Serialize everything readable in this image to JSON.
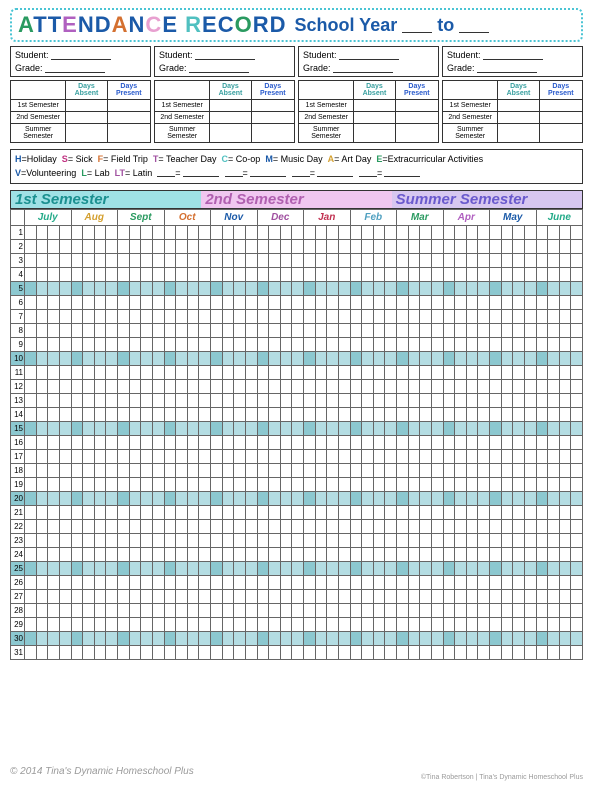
{
  "title": {
    "letters": [
      {
        "c": "A",
        "color": "#2a9a60"
      },
      {
        "c": "T",
        "color": "#1b5aa8"
      },
      {
        "c": "T",
        "color": "#1b5aa8"
      },
      {
        "c": "E",
        "color": "#b060c0"
      },
      {
        "c": "N",
        "color": "#1b5aa8"
      },
      {
        "c": "D",
        "color": "#1b5aa8"
      },
      {
        "c": "A",
        "color": "#d47030"
      },
      {
        "c": "N",
        "color": "#1b5aa8"
      },
      {
        "c": "C",
        "color": "#e8a0d0"
      },
      {
        "c": "E",
        "color": "#1b5aa8"
      },
      {
        "c": " ",
        "color": "#000"
      },
      {
        "c": "R",
        "color": "#50c0c0"
      },
      {
        "c": "E",
        "color": "#1b5aa8"
      },
      {
        "c": "C",
        "color": "#1b5aa8"
      },
      {
        "c": "O",
        "color": "#2a9a60"
      },
      {
        "c": "R",
        "color": "#1b5aa8"
      },
      {
        "c": "D",
        "color": "#1b5aa8"
      }
    ],
    "sub1": "School Year",
    "sub2": "to"
  },
  "student_labels": {
    "student": "Student:",
    "grade": "Grade:"
  },
  "summary": {
    "absent": "Days Absent",
    "present": "Days Present",
    "rows": [
      "1st Semester",
      "2nd Semester",
      "Summer Semester"
    ]
  },
  "legend": {
    "row1": [
      {
        "k": "H",
        "c": "#1b5aa8",
        "v": "=Holiday"
      },
      {
        "k": "S",
        "c": "#c03080",
        "v": "= Sick"
      },
      {
        "k": "F",
        "c": "#d47030",
        "v": "= Field Trip"
      },
      {
        "k": "T",
        "c": "#a050a0",
        "v": "= Teacher Day"
      },
      {
        "k": "C",
        "c": "#50c0c0",
        "v": "= Co-op"
      },
      {
        "k": "M",
        "c": "#1b5aa8",
        "v": "= Music Day"
      },
      {
        "k": "A",
        "c": "#d4a030",
        "v": "= Art Day"
      },
      {
        "k": "E",
        "c": "#2a9a60",
        "v": "=Extracurricular Activities"
      }
    ],
    "row2": [
      {
        "k": "V",
        "c": "#1b5aa8",
        "v": "=Volunteering"
      },
      {
        "k": "L",
        "c": "#2a9a60",
        "v": "= Lab"
      },
      {
        "k": "LT",
        "c": "#a050a0",
        "v": "= Latin"
      }
    ]
  },
  "semesters": {
    "s1": "1st Semester",
    "s2": "2nd Semester",
    "s3": "Summer Semester"
  },
  "months": [
    {
      "n": "July",
      "cls": "july"
    },
    {
      "n": "Aug",
      "cls": "aug"
    },
    {
      "n": "Sept",
      "cls": "sept"
    },
    {
      "n": "Oct",
      "cls": "oct"
    },
    {
      "n": "Nov",
      "cls": "nov"
    },
    {
      "n": "Dec",
      "cls": "dec"
    },
    {
      "n": "Jan",
      "cls": "jan"
    },
    {
      "n": "Feb",
      "cls": "feb"
    },
    {
      "n": "Mar",
      "cls": "mar"
    },
    {
      "n": "Apr",
      "cls": "apr"
    },
    {
      "n": "May",
      "cls": "may"
    },
    {
      "n": "June",
      "cls": "june"
    }
  ],
  "days": 31,
  "subcols": 4,
  "highlight_every": 5,
  "colors": {
    "cell_border": "#666",
    "hl_main": "#8cc8d0",
    "hl_sub": "#b4dde3"
  },
  "watermark": "© 2014 Tina's Dynamic Homeschool Plus",
  "watermark2": "©Tina Robertson | Tina's Dynamic Homeschool Plus"
}
